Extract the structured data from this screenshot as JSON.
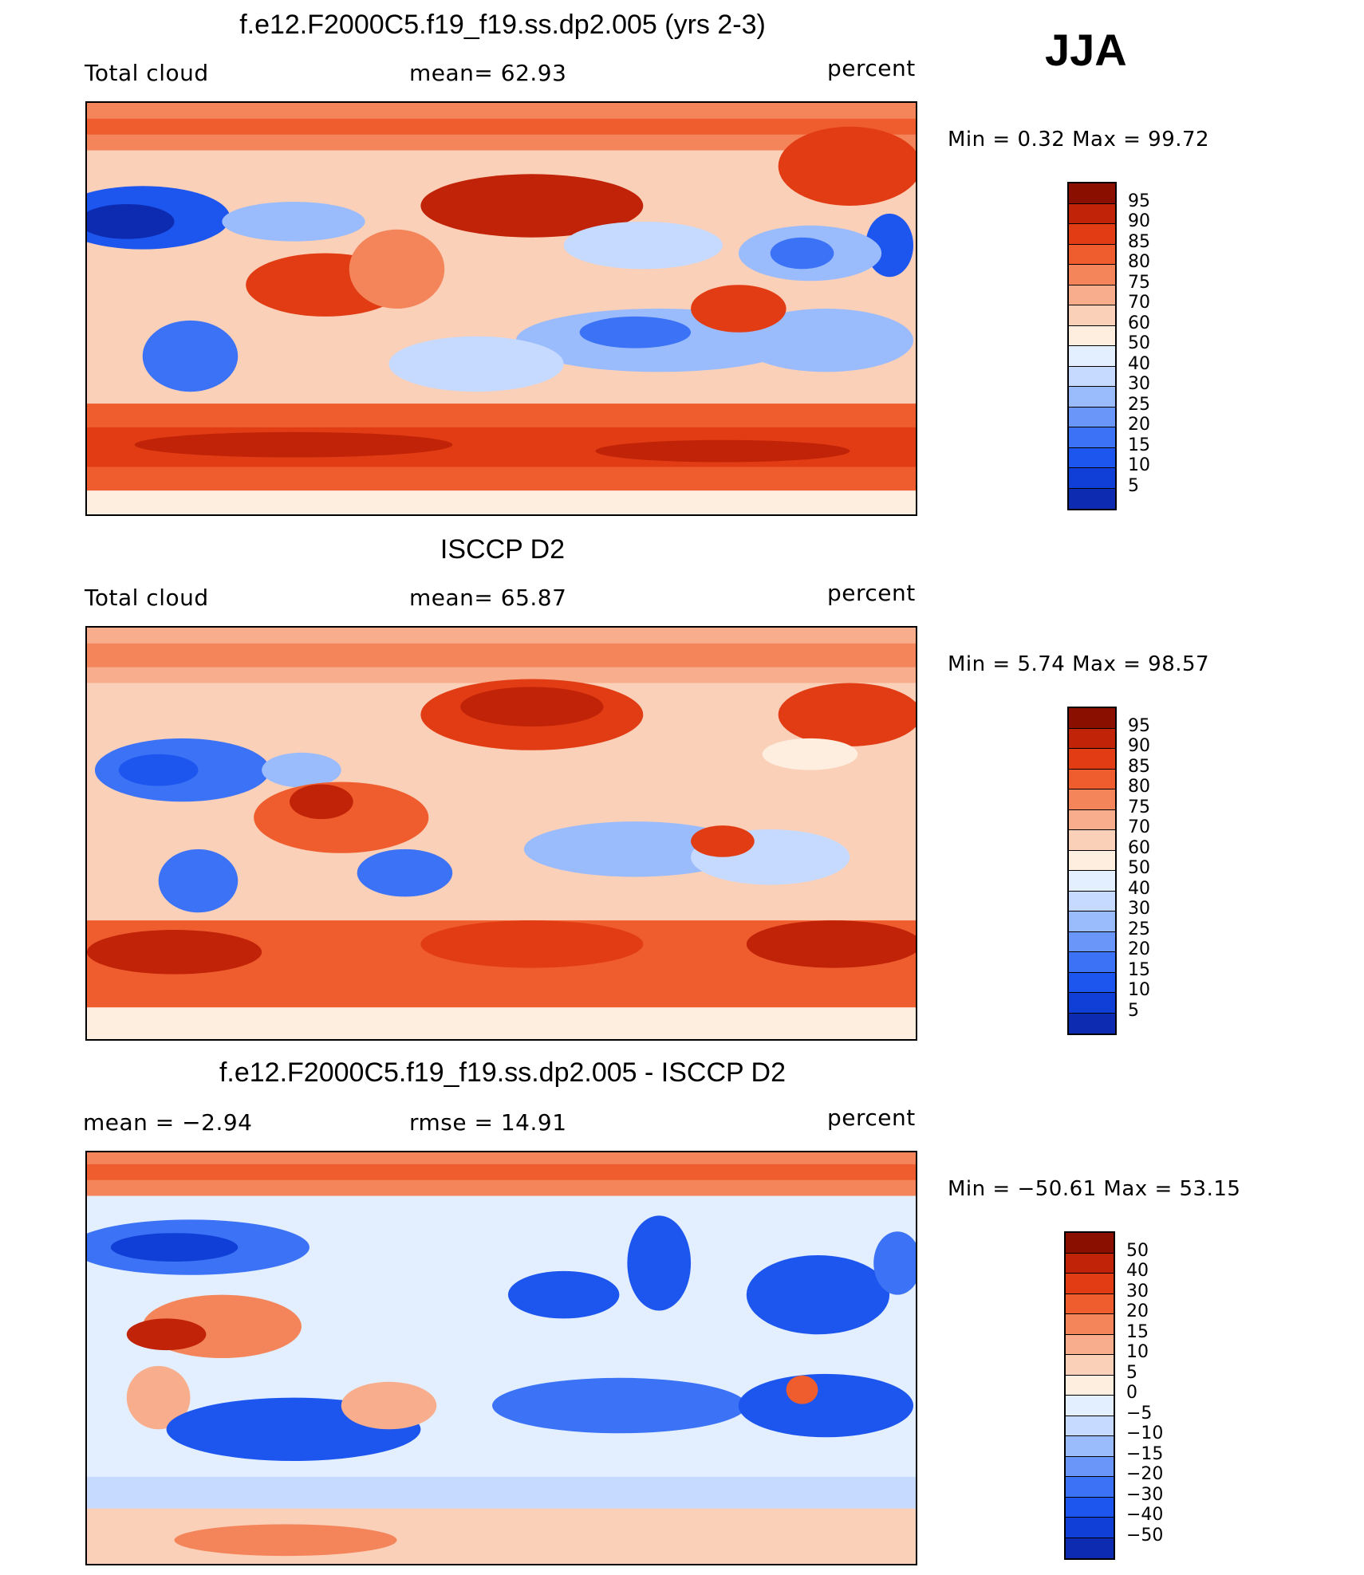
{
  "season": "JJA",
  "colors": {
    "abs": [
      "#000087",
      "#0c2bb0",
      "#0f3fd6",
      "#1d56ee",
      "#3c72f6",
      "#6a96fa",
      "#9bbcfc",
      "#c6daff",
      "#e3efff",
      "#fdeee0",
      "#fbd0b8",
      "#f8ae8c",
      "#f4855b",
      "#ef5d2f",
      "#e23c14",
      "#c12308",
      "#8b0f00"
    ],
    "diff": [
      "#000087",
      "#0c2bb0",
      "#0f3fd6",
      "#1d56ee",
      "#3c72f6",
      "#6a96fa",
      "#9bbcfc",
      "#c6daff",
      "#e3efff",
      "#fdeee0",
      "#fbd0b8",
      "#f8ae8c",
      "#f4855b",
      "#ef5d2f",
      "#e23c14",
      "#c12308",
      "#8b0f00"
    ]
  },
  "panels": [
    {
      "title": "f.e12.F2000C5.f19_f19.ss.dp2.005 (yrs 2-3)",
      "left": "Total cloud",
      "center": "mean=   62.93",
      "right": "percent",
      "minmax": "Min  =     0.32  Max  =    99.72",
      "levels": [
        "95",
        "90",
        "85",
        "80",
        "75",
        "70",
        "60",
        "50",
        "40",
        "30",
        "25",
        "20",
        "15",
        "10",
        "5"
      ]
    },
    {
      "title": "ISCCP D2",
      "left": "Total cloud",
      "center": "mean=   65.87",
      "right": "percent",
      "minmax": "Min  =     5.74  Max  =    98.57",
      "levels": [
        "95",
        "90",
        "85",
        "80",
        "75",
        "70",
        "60",
        "50",
        "40",
        "30",
        "25",
        "20",
        "15",
        "10",
        "5"
      ]
    },
    {
      "title": "f.e12.F2000C5.f19_f19.ss.dp2.005 - ISCCP D2",
      "left": "mean  =    −2.94",
      "center": "rmse  =    14.91",
      "right": "percent",
      "minmax": "Min  = −50.61  Max  =    53.15",
      "levels": [
        "50",
        "40",
        "30",
        "20",
        "15",
        "10",
        "5",
        "0",
        "−5",
        "−10",
        "−15",
        "−20",
        "−30",
        "−40",
        "−50"
      ]
    }
  ],
  "chart_data": [
    {
      "type": "heatmap",
      "title": "f.e12.F2000C5.f19_f19.ss.dp2.005 (yrs 2-3)",
      "variable": "Total cloud",
      "units": "percent",
      "mean": 62.93,
      "min": 0.32,
      "max": 99.72,
      "contour_levels": [
        5,
        10,
        15,
        20,
        25,
        30,
        40,
        50,
        60,
        70,
        75,
        80,
        85,
        90,
        95
      ],
      "season": "JJA"
    },
    {
      "type": "heatmap",
      "title": "ISCCP D2",
      "variable": "Total cloud",
      "units": "percent",
      "mean": 65.87,
      "min": 5.74,
      "max": 98.57,
      "contour_levels": [
        5,
        10,
        15,
        20,
        25,
        30,
        40,
        50,
        60,
        70,
        75,
        80,
        85,
        90,
        95
      ],
      "season": "JJA"
    },
    {
      "type": "heatmap",
      "title": "f.e12.F2000C5.f19_f19.ss.dp2.005 - ISCCP D2",
      "units": "percent",
      "mean": -2.94,
      "rmse": 14.91,
      "min": -50.61,
      "max": 53.15,
      "contour_levels": [
        -50,
        -40,
        -30,
        -20,
        -15,
        -10,
        -5,
        0,
        5,
        10,
        15,
        20,
        30,
        40,
        50
      ],
      "season": "JJA"
    }
  ]
}
